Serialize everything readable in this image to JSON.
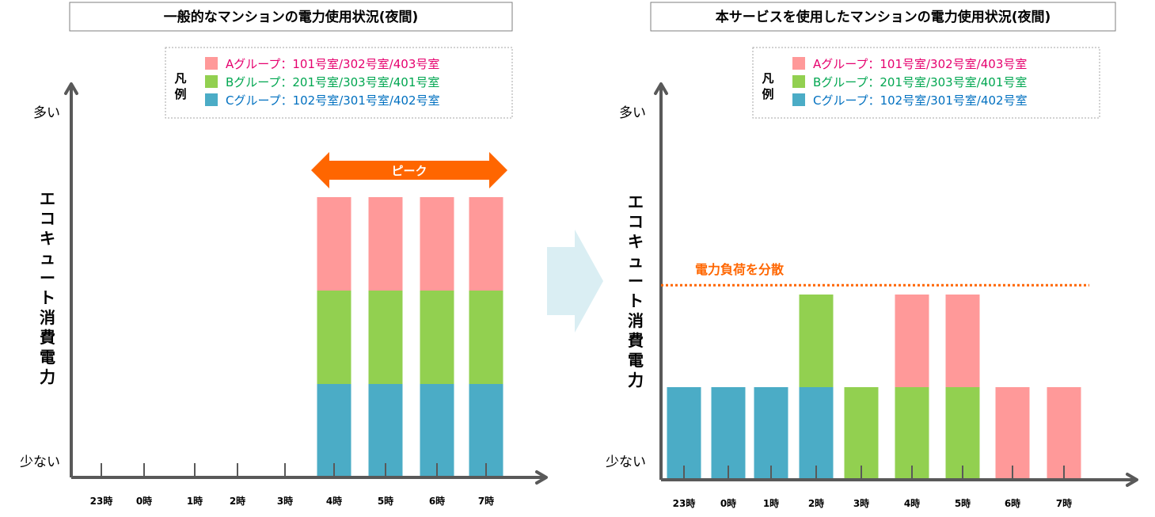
{
  "colors": {
    "group_a": "#ff9999",
    "group_b": "#92d050",
    "group_c": "#4bacc6",
    "axis": "#595959",
    "peak": "#ff6600",
    "legend_a_text": "#e6006e",
    "legend_b_text": "#00a650",
    "legend_c_text": "#0070c0",
    "transition_arrow": "#daeef3"
  },
  "icons": {
    "transition": "right-arrow-icon",
    "peak": "double-headed-arrow-icon"
  },
  "chart_data": [
    {
      "type": "bar",
      "stacked": true,
      "title": "一般的なマンションの電力使用状況(夜間)",
      "ylabel": "エコキュート消費電力",
      "y_top_label": "多い",
      "y_bottom_label": "少ない",
      "categories": [
        "23時",
        "0時",
        "1時",
        "2時",
        "3時",
        "4時",
        "5時",
        "6時",
        "7時"
      ],
      "ylim": [
        0,
        3.2
      ],
      "legend_heading": "凡例",
      "legend_position": "top-right",
      "series": [
        {
          "name": "Cグループ：102号室/301号室/402号室",
          "values": [
            0,
            0,
            0,
            0,
            0,
            1,
            1,
            1,
            1
          ]
        },
        {
          "name": "Bグループ：201号室/303号室/401号室",
          "values": [
            0,
            0,
            0,
            0,
            0,
            1,
            1,
            1,
            1
          ]
        },
        {
          "name": "Aグループ：101号室/302号室/403号室",
          "values": [
            0,
            0,
            0,
            0,
            0,
            1,
            1,
            1,
            1
          ]
        }
      ],
      "annotation": {
        "label": "ピーク",
        "from": "4時",
        "to": "7時"
      }
    },
    {
      "type": "bar",
      "stacked": true,
      "title": "本サービスを使用したマンションの電力使用状況(夜間)",
      "ylabel": "エコキュート消費電力",
      "y_top_label": "多い",
      "y_bottom_label": "少ない",
      "categories": [
        "23時",
        "0時",
        "1時",
        "2時",
        "3時",
        "4時",
        "5時",
        "6時",
        "7時"
      ],
      "ylim": [
        0,
        3.2
      ],
      "legend_heading": "凡例",
      "legend_position": "top-right",
      "series": [
        {
          "name": "Cグループ：102号室/301号室/402号室",
          "values": [
            1,
            1,
            1,
            1,
            0,
            0,
            0,
            0,
            0
          ]
        },
        {
          "name": "Bグループ：201号室/303号室/401号室",
          "values": [
            0,
            0,
            0,
            1,
            1,
            1,
            1,
            0,
            0
          ]
        },
        {
          "name": "Aグループ：101号室/302号室/403号室",
          "values": [
            0,
            0,
            0,
            0,
            0,
            1,
            1,
            1,
            1
          ]
        }
      ],
      "reference_line": {
        "label": "電力負荷を分散",
        "y": 2.1,
        "style": "dotted"
      }
    }
  ]
}
